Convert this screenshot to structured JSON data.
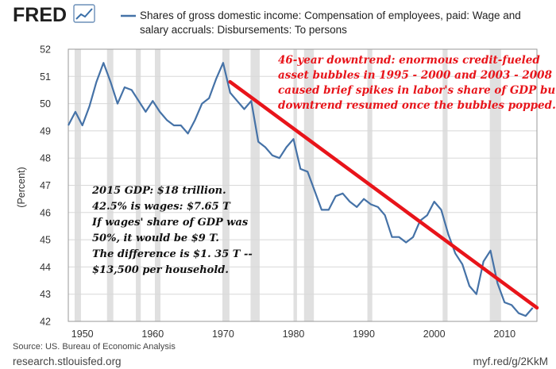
{
  "header": {
    "logo_text": "FRED",
    "legend_line1": "Shares of gross domestic income: Compensation of employees, paid: Wage and",
    "legend_line2": "salary accruals: Disbursements: To persons"
  },
  "footer": {
    "source": "Source: US. Bureau of Economic Analysis",
    "site": "research.stlouisfed.org",
    "short_url": "myf.red/g/2KkM"
  },
  "annotations": {
    "red": [
      "46-year downtrend: enormous credit-fueled",
      "asset bubbles in 1995 - 2000 and 2003 - 2008",
      "caused brief spikes in labor's share of GDP but",
      "downtrend resumed once the bubbles popped."
    ],
    "black": [
      "2015 GDP: $18 trillion.",
      "42.5% is wages: $7.65 T",
      "If wages' share of GDP was",
      "50%, it would be $9 T.",
      "The difference is $1. 35 T --",
      "$13,500 per household."
    ]
  },
  "chart_data": {
    "type": "line",
    "ylabel": "(Percent)",
    "xlim": [
      1948,
      2014.6
    ],
    "ylim": [
      42,
      52
    ],
    "x_ticks": [
      1950,
      1960,
      1970,
      1980,
      1990,
      2000,
      2010
    ],
    "y_ticks": [
      42,
      43,
      44,
      45,
      46,
      47,
      48,
      49,
      50,
      51,
      52
    ],
    "grid": "horizontal",
    "series": [
      {
        "color": "#4572a7",
        "x": [
          1948,
          1949,
          1950,
          1951,
          1952,
          1953,
          1954,
          1955,
          1956,
          1957,
          1958,
          1959,
          1960,
          1961,
          1962,
          1963,
          1964,
          1965,
          1966,
          1967,
          1968,
          1969,
          1970,
          1971,
          1972,
          1973,
          1974,
          1975,
          1976,
          1977,
          1978,
          1979,
          1980,
          1981,
          1982,
          1983,
          1984,
          1985,
          1986,
          1987,
          1988,
          1989,
          1990,
          1991,
          1992,
          1993,
          1994,
          1995,
          1996,
          1997,
          1998,
          1999,
          2000,
          2001,
          2002,
          2003,
          2004,
          2005,
          2006,
          2007,
          2008,
          2009,
          2010,
          2011,
          2012,
          2013,
          2014
        ],
        "values": [
          49.2,
          49.7,
          49.2,
          49.9,
          50.8,
          51.5,
          50.8,
          50.0,
          50.6,
          50.5,
          50.1,
          49.7,
          50.1,
          49.7,
          49.4,
          49.2,
          49.2,
          48.9,
          49.4,
          50.0,
          50.2,
          50.9,
          51.5,
          50.4,
          50.1,
          49.8,
          50.1,
          48.6,
          48.4,
          48.1,
          48.0,
          48.4,
          48.7,
          47.6,
          47.5,
          46.8,
          46.1,
          46.1,
          46.6,
          46.7,
          46.4,
          46.2,
          46.5,
          46.3,
          46.2,
          45.9,
          45.1,
          45.1,
          44.9,
          45.1,
          45.7,
          45.9,
          46.4,
          46.1,
          45.2,
          44.5,
          44.1,
          43.3,
          43.0,
          44.2,
          44.6,
          43.4,
          42.7,
          42.6,
          42.3,
          42.2,
          42.5
        ]
      }
    ],
    "recessions": [
      [
        1948.9,
        1949.8
      ],
      [
        1953.5,
        1954.4
      ],
      [
        1957.6,
        1958.3
      ],
      [
        1960.3,
        1961.1
      ],
      [
        1969.9,
        1970.9
      ],
      [
        1973.9,
        1975.2
      ],
      [
        1980.0,
        1980.5
      ],
      [
        1981.5,
        1982.9
      ],
      [
        1990.5,
        1991.2
      ],
      [
        2001.2,
        2001.9
      ],
      [
        2007.9,
        2009.5
      ]
    ],
    "trend_line": {
      "color": "#e8141a",
      "x": [
        1971,
        2014.6
      ],
      "y": [
        50.8,
        42.5
      ]
    }
  }
}
